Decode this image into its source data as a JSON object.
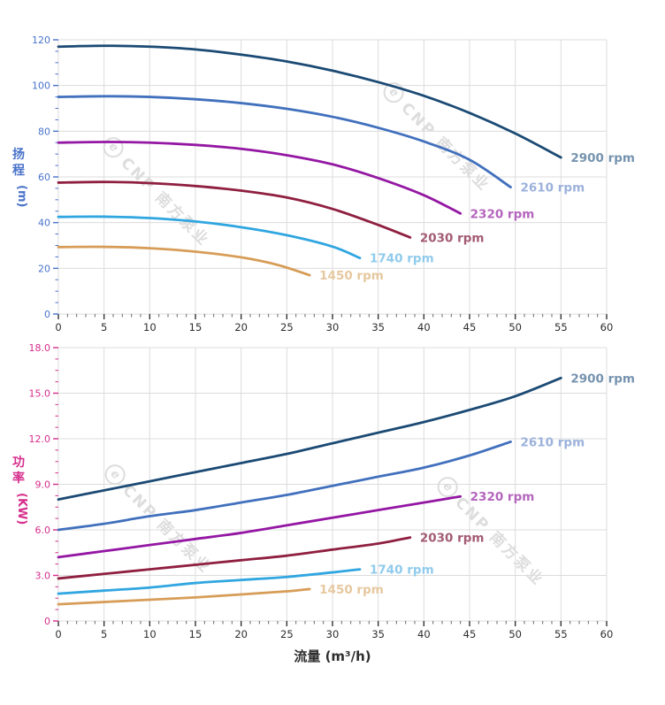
{
  "watermark": {
    "logo_letter": "e",
    "text": "CNP 南方泵业"
  },
  "chart_data": [
    {
      "id": "head",
      "type": "line",
      "title": "",
      "xlabel": "",
      "ylabel": "扬程",
      "ylabel_unit": "(m)",
      "xlim": [
        0,
        60
      ],
      "ylim": [
        0,
        120
      ],
      "x_major": 5,
      "x_minor": 1,
      "y_major": 20,
      "y_minor": 5,
      "grid": true,
      "legend_position": "curve-end-labels",
      "axis_color": "#4a73c9",
      "x_tick_labels": [
        "0",
        "5",
        "10",
        "15",
        "20",
        "25",
        "30",
        "35",
        "40",
        "45",
        "50",
        "55",
        "60"
      ],
      "y_tick_labels": [
        "0",
        "20",
        "40",
        "60",
        "80",
        "100",
        "120"
      ],
      "series": [
        {
          "name": "2900 rpm",
          "color": "#1b4a74",
          "label_color": "#7593af",
          "points": [
            [
              0,
              117
            ],
            [
              5,
              117.4
            ],
            [
              10,
              117
            ],
            [
              15,
              115.8
            ],
            [
              20,
              113.5
            ],
            [
              25,
              110.5
            ],
            [
              30,
              106.5
            ],
            [
              35,
              101.5
            ],
            [
              40,
              95.5
            ],
            [
              45,
              88
            ],
            [
              50,
              79
            ],
            [
              55,
              68.5
            ]
          ]
        },
        {
          "name": "2610 rpm",
          "color": "#4170bd",
          "label_color": "#9cb2dc",
          "points": [
            [
              0,
              95
            ],
            [
              5,
              95.3
            ],
            [
              10,
              95
            ],
            [
              15,
              94
            ],
            [
              20,
              92.3
            ],
            [
              25,
              89.8
            ],
            [
              30,
              86.3
            ],
            [
              35,
              81.5
            ],
            [
              40,
              75.5
            ],
            [
              45,
              67.5
            ],
            [
              49.5,
              55.5
            ]
          ]
        },
        {
          "name": "2320 rpm",
          "color": "#9417a3",
          "label_color": "#b465bd",
          "points": [
            [
              0,
              75
            ],
            [
              5,
              75.3
            ],
            [
              10,
              75
            ],
            [
              15,
              74
            ],
            [
              20,
              72.3
            ],
            [
              25,
              69.5
            ],
            [
              30,
              65.5
            ],
            [
              35,
              59.5
            ],
            [
              40,
              52
            ],
            [
              44,
              44
            ]
          ]
        },
        {
          "name": "2030 rpm",
          "color": "#8f1f40",
          "label_color": "#a35b74",
          "points": [
            [
              0,
              57.5
            ],
            [
              5,
              57.8
            ],
            [
              10,
              57.3
            ],
            [
              15,
              56
            ],
            [
              20,
              54
            ],
            [
              25,
              51
            ],
            [
              30,
              46
            ],
            [
              35,
              39
            ],
            [
              38.5,
              33.5
            ]
          ]
        },
        {
          "name": "1740 rpm",
          "color": "#30a6e0",
          "label_color": "#90cbec",
          "points": [
            [
              0,
              42.5
            ],
            [
              5,
              42.6
            ],
            [
              10,
              42
            ],
            [
              15,
              40.5
            ],
            [
              20,
              38
            ],
            [
              25,
              34.5
            ],
            [
              30,
              29.5
            ],
            [
              33,
              24.5
            ]
          ]
        },
        {
          "name": "1450 rpm",
          "color": "#d79d58",
          "label_color": "#e6c8a0",
          "points": [
            [
              0,
              29.3
            ],
            [
              5,
              29.4
            ],
            [
              10,
              28.8
            ],
            [
              15,
              27.3
            ],
            [
              20,
              24.8
            ],
            [
              24,
              21.5
            ],
            [
              27.5,
              17
            ]
          ]
        }
      ]
    },
    {
      "id": "power",
      "type": "line",
      "title": "",
      "xlabel": "流量 (m³/h)",
      "ylabel": "功率",
      "ylabel_unit": "(KW)",
      "xlim": [
        0,
        60
      ],
      "ylim": [
        0,
        18
      ],
      "x_major": 5,
      "x_minor": 1,
      "y_major": 3,
      "y_minor": 0.75,
      "grid": true,
      "legend_position": "curve-end-labels",
      "axis_color": "#d62e8c",
      "x_tick_labels": [
        "0",
        "5",
        "10",
        "15",
        "20",
        "25",
        "30",
        "35",
        "40",
        "45",
        "50",
        "55",
        "60"
      ],
      "y_tick_labels": [
        "0",
        "3.0",
        "6.0",
        "9.0",
        "12.0",
        "15.0",
        "18.0"
      ],
      "series": [
        {
          "name": "2900 rpm",
          "color": "#1b4a74",
          "label_color": "#7593af",
          "points": [
            [
              0,
              8.0
            ],
            [
              5,
              8.6
            ],
            [
              10,
              9.2
            ],
            [
              15,
              9.8
            ],
            [
              20,
              10.4
            ],
            [
              25,
              11.0
            ],
            [
              30,
              11.7
            ],
            [
              35,
              12.4
            ],
            [
              40,
              13.1
            ],
            [
              45,
              13.9
            ],
            [
              50,
              14.8
            ],
            [
              55,
              16.0
            ]
          ]
        },
        {
          "name": "2610 rpm",
          "color": "#4170bd",
          "label_color": "#9cb2dc",
          "points": [
            [
              0,
              6.0
            ],
            [
              5,
              6.4
            ],
            [
              10,
              6.9
            ],
            [
              15,
              7.3
            ],
            [
              20,
              7.8
            ],
            [
              25,
              8.3
            ],
            [
              30,
              8.9
            ],
            [
              35,
              9.5
            ],
            [
              40,
              10.1
            ],
            [
              45,
              10.9
            ],
            [
              49.5,
              11.8
            ]
          ]
        },
        {
          "name": "2320 rpm",
          "color": "#9417a3",
          "label_color": "#b465bd",
          "points": [
            [
              0,
              4.2
            ],
            [
              5,
              4.6
            ],
            [
              10,
              5.0
            ],
            [
              15,
              5.4
            ],
            [
              20,
              5.8
            ],
            [
              25,
              6.3
            ],
            [
              30,
              6.8
            ],
            [
              35,
              7.3
            ],
            [
              40,
              7.8
            ],
            [
              44,
              8.2
            ]
          ]
        },
        {
          "name": "2030 rpm",
          "color": "#8f1f40",
          "label_color": "#a35b74",
          "points": [
            [
              0,
              2.8
            ],
            [
              5,
              3.1
            ],
            [
              10,
              3.4
            ],
            [
              15,
              3.7
            ],
            [
              20,
              4.0
            ],
            [
              25,
              4.3
            ],
            [
              30,
              4.7
            ],
            [
              35,
              5.1
            ],
            [
              38.5,
              5.5
            ]
          ]
        },
        {
          "name": "1740 rpm",
          "color": "#30a6e0",
          "label_color": "#90cbec",
          "points": [
            [
              0,
              1.8
            ],
            [
              5,
              2.0
            ],
            [
              10,
              2.2
            ],
            [
              15,
              2.5
            ],
            [
              20,
              2.7
            ],
            [
              25,
              2.9
            ],
            [
              30,
              3.2
            ],
            [
              33,
              3.4
            ]
          ]
        },
        {
          "name": "1450 rpm",
          "color": "#d79d58",
          "label_color": "#e6c8a0",
          "points": [
            [
              0,
              1.1
            ],
            [
              5,
              1.25
            ],
            [
              10,
              1.4
            ],
            [
              15,
              1.55
            ],
            [
              20,
              1.75
            ],
            [
              25,
              1.95
            ],
            [
              27.5,
              2.1
            ]
          ]
        }
      ]
    }
  ]
}
